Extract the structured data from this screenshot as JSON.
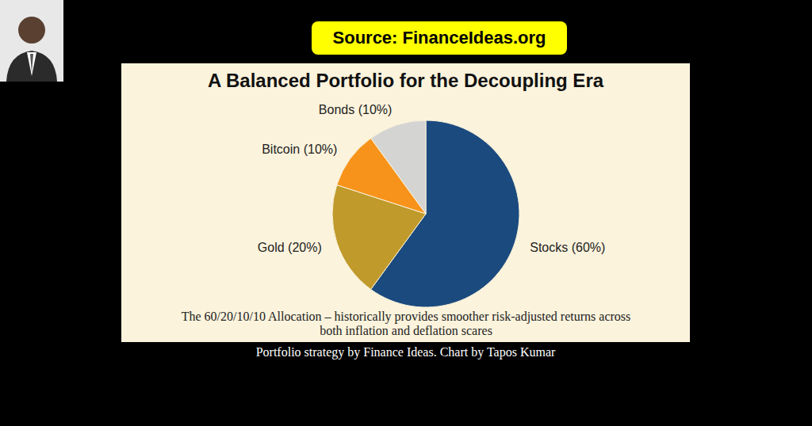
{
  "header": {
    "source": "Source: FinanceIdeas.org"
  },
  "chart_data": {
    "type": "pie",
    "title": "A Balanced Portfolio for the Decoupling Era",
    "categories": [
      "Stocks",
      "Gold",
      "Bitcoin",
      "Bonds"
    ],
    "values": [
      60,
      20,
      10,
      10
    ],
    "value_labels": [
      "Stocks (60%)",
      "Gold (20%)",
      "Bitcoin (10%)",
      "Bonds (10%)"
    ],
    "colors": [
      "#1b4a7e",
      "#c09a2a",
      "#f7931a",
      "#d4d4d2"
    ],
    "data_labels": true,
    "caption": "The 60/20/10/10 Allocation – historically provides smoother risk-adjusted returns across both inflation and deflation scares"
  },
  "footer": {
    "credit": "Portfolio strategy by Finance Ideas. Chart by Tapos Kumar"
  }
}
